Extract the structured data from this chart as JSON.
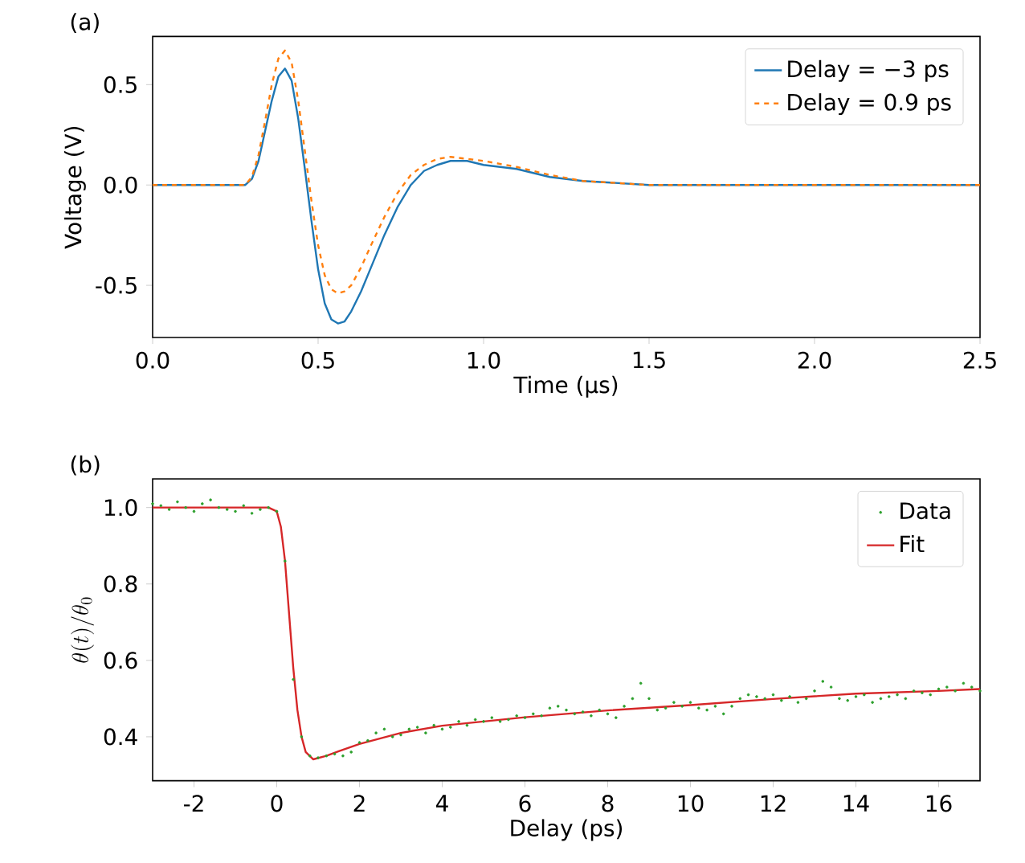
{
  "chart_data": [
    {
      "type": "line",
      "annotations": [
        "(a)"
      ],
      "xlabel": "Time (µs)",
      "ylabel": "Voltage (V)",
      "xlim": [
        0,
        2.5
      ],
      "ylim": [
        -0.76,
        0.74
      ],
      "xticks": [
        {
          "value": 0,
          "label": "0.0"
        },
        0.5,
        {
          "value": 1,
          "label": "1.0"
        },
        1.5,
        {
          "value": 2,
          "label": "2.0"
        },
        2.5
      ],
      "yticks": [
        -0.5,
        {
          "value": 0,
          "label": "0.0"
        },
        0.5
      ],
      "legend": "top right",
      "grid": false,
      "series": [
        {
          "name": "Delay = −3 ps",
          "color": "#1f77b4",
          "line_style": "solid",
          "x": [
            0,
            0.25,
            0.28,
            0.3,
            0.32,
            0.34,
            0.36,
            0.38,
            0.4,
            0.42,
            0.44,
            0.46,
            0.48,
            0.5,
            0.52,
            0.54,
            0.56,
            0.58,
            0.6,
            0.63,
            0.66,
            0.7,
            0.74,
            0.78,
            0.82,
            0.86,
            0.9,
            0.95,
            1.0,
            1.1,
            1.2,
            1.3,
            1.4,
            1.5,
            1.7,
            2.0,
            2.5
          ],
          "values": [
            0,
            0,
            0,
            0.03,
            0.12,
            0.27,
            0.42,
            0.54,
            0.58,
            0.52,
            0.33,
            0.08,
            -0.18,
            -0.42,
            -0.59,
            -0.67,
            -0.69,
            -0.68,
            -0.63,
            -0.53,
            -0.41,
            -0.25,
            -0.11,
            0.0,
            0.07,
            0.1,
            0.12,
            0.12,
            0.1,
            0.08,
            0.04,
            0.02,
            0.01,
            0,
            0,
            0,
            0
          ]
        },
        {
          "name": "Delay = 0.9 ps",
          "color": "#ff7f0e",
          "line_style": "dashed",
          "x": [
            0,
            0.25,
            0.28,
            0.3,
            0.32,
            0.34,
            0.36,
            0.38,
            0.4,
            0.42,
            0.44,
            0.46,
            0.48,
            0.5,
            0.52,
            0.54,
            0.56,
            0.58,
            0.6,
            0.63,
            0.66,
            0.7,
            0.74,
            0.78,
            0.82,
            0.86,
            0.9,
            0.95,
            1.0,
            1.1,
            1.2,
            1.3,
            1.4,
            1.5,
            1.7,
            2.0,
            2.5
          ],
          "values": [
            0,
            0,
            0,
            0.04,
            0.15,
            0.32,
            0.5,
            0.63,
            0.67,
            0.61,
            0.42,
            0.17,
            -0.08,
            -0.3,
            -0.45,
            -0.52,
            -0.54,
            -0.53,
            -0.5,
            -0.41,
            -0.3,
            -0.16,
            -0.04,
            0.05,
            0.1,
            0.13,
            0.14,
            0.13,
            0.12,
            0.09,
            0.05,
            0.02,
            0.01,
            0,
            0,
            0,
            0
          ]
        }
      ]
    },
    {
      "type": "line",
      "annotations": [
        "(b)"
      ],
      "xlabel": "Delay (ps)",
      "ylabel": "\\theta(t)/\\theta_0",
      "xlim": [
        -3,
        17
      ],
      "ylim": [
        0.285,
        1.075
      ],
      "xticks": [
        -2,
        0,
        2,
        4,
        6,
        8,
        10,
        12,
        14,
        16
      ],
      "yticks": [
        0.4,
        0.6,
        0.8,
        {
          "value": 1,
          "label": "1.0"
        }
      ],
      "legend": "top right",
      "grid": false,
      "series": [
        {
          "name": "Data",
          "type": "scatter",
          "color": "#2ca02c",
          "x": [
            -3,
            -2.8,
            -2.6,
            -2.4,
            -2.2,
            -2,
            -1.8,
            -1.6,
            -1.4,
            -1.2,
            -1,
            -0.8,
            -0.6,
            -0.4,
            -0.2,
            0,
            0.2,
            0.4,
            0.6,
            0.8,
            1,
            1.2,
            1.4,
            1.6,
            1.8,
            2,
            2.2,
            2.4,
            2.6,
            2.8,
            3,
            3.2,
            3.4,
            3.6,
            3.8,
            4,
            4.2,
            4.4,
            4.6,
            4.8,
            5,
            5.2,
            5.4,
            5.6,
            5.8,
            6,
            6.2,
            6.4,
            6.6,
            6.8,
            7,
            7.2,
            7.4,
            7.6,
            7.8,
            8,
            8.2,
            8.4,
            8.6,
            8.8,
            9,
            9.2,
            9.4,
            9.6,
            9.8,
            10,
            10.2,
            10.4,
            10.6,
            10.8,
            11,
            11.2,
            11.4,
            11.6,
            11.8,
            12,
            12.2,
            12.4,
            12.6,
            12.8,
            13,
            13.2,
            13.4,
            13.6,
            13.8,
            14,
            14.2,
            14.4,
            14.6,
            14.8,
            15,
            15.2,
            15.4,
            15.6,
            15.8,
            16,
            16.2,
            16.4,
            16.6,
            16.8,
            17
          ],
          "values": [
            1.01,
            1.005,
            0.995,
            1.015,
            1.0,
            0.99,
            1.01,
            1.02,
            1.0,
            0.995,
            0.99,
            1.005,
            0.985,
            0.995,
            1.0,
            0.99,
            0.86,
            0.55,
            0.4,
            0.35,
            0.345,
            0.35,
            0.355,
            0.35,
            0.36,
            0.385,
            0.39,
            0.41,
            0.42,
            0.4,
            0.405,
            0.42,
            0.425,
            0.41,
            0.43,
            0.42,
            0.425,
            0.44,
            0.43,
            0.445,
            0.44,
            0.45,
            0.44,
            0.445,
            0.455,
            0.45,
            0.46,
            0.455,
            0.475,
            0.48,
            0.47,
            0.46,
            0.465,
            0.455,
            0.47,
            0.46,
            0.45,
            0.48,
            0.5,
            0.54,
            0.5,
            0.47,
            0.475,
            0.49,
            0.48,
            0.49,
            0.475,
            0.47,
            0.48,
            0.46,
            0.48,
            0.5,
            0.51,
            0.505,
            0.5,
            0.51,
            0.495,
            0.505,
            0.49,
            0.5,
            0.52,
            0.545,
            0.53,
            0.5,
            0.495,
            0.505,
            0.51,
            0.49,
            0.5,
            0.505,
            0.51,
            0.5,
            0.52,
            0.515,
            0.51,
            0.525,
            0.53,
            0.52,
            0.54,
            0.53,
            0.52
          ]
        },
        {
          "name": "Fit",
          "type": "line",
          "line_style": "solid",
          "color": "#d62728",
          "x": [
            -3,
            -0.2,
            0,
            0.1,
            0.2,
            0.3,
            0.4,
            0.5,
            0.6,
            0.7,
            0.88,
            1.2,
            1.5,
            2,
            3,
            4,
            6,
            8,
            10,
            12,
            14,
            16,
            17
          ],
          "values": [
            1,
            1,
            0.99,
            0.95,
            0.86,
            0.72,
            0.58,
            0.47,
            0.4,
            0.36,
            0.341,
            0.35,
            0.362,
            0.381,
            0.41,
            0.429,
            0.451,
            0.469,
            0.483,
            0.499,
            0.513,
            0.52,
            0.525
          ]
        }
      ]
    }
  ]
}
